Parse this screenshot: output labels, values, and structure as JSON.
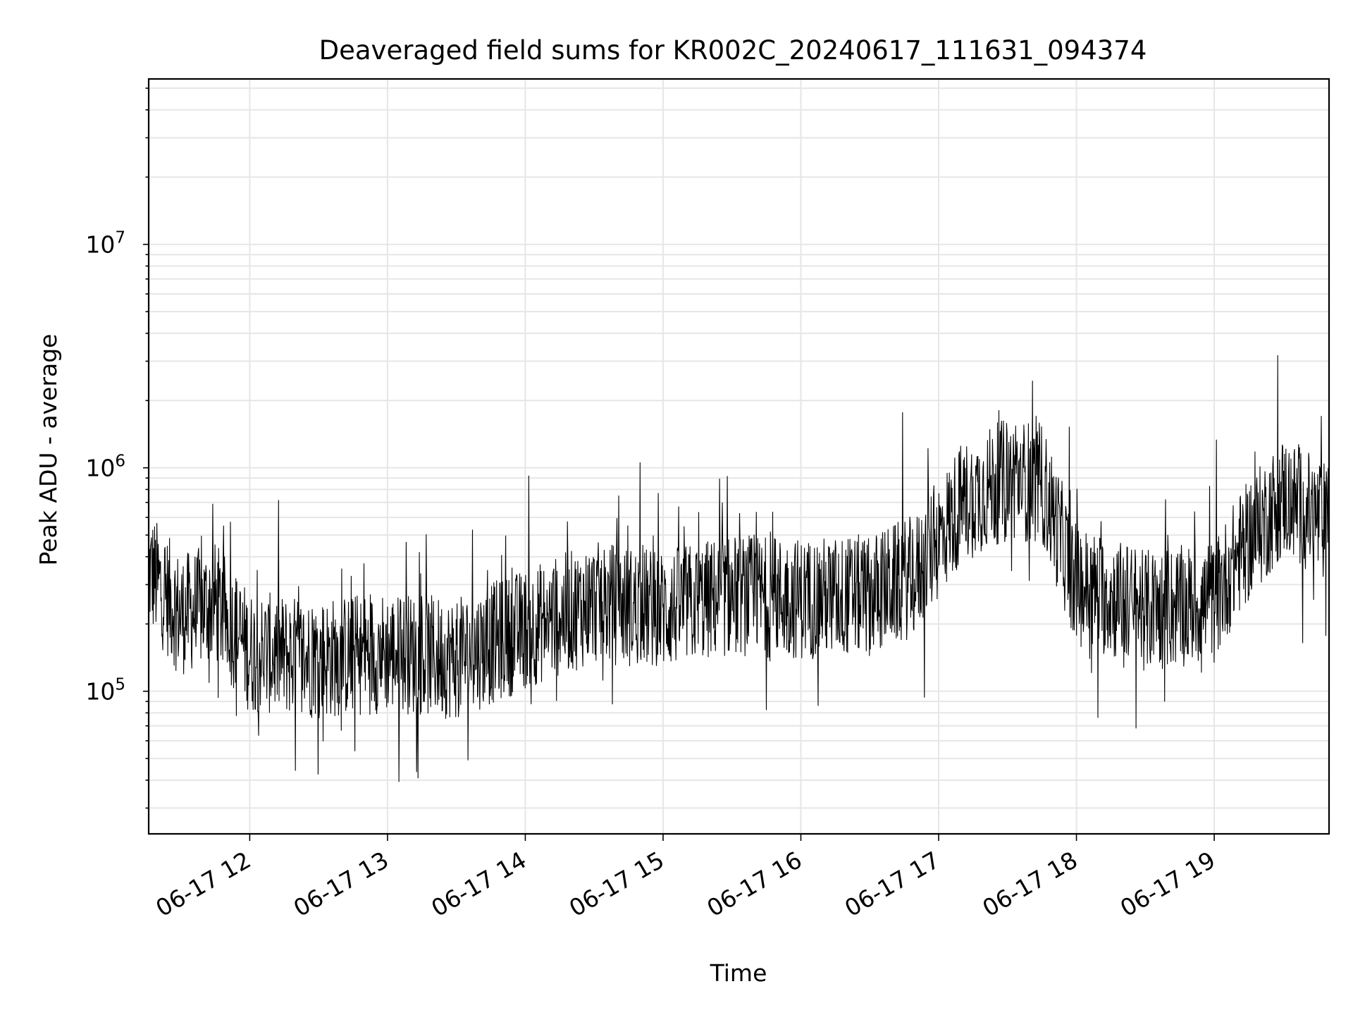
{
  "chart_data": {
    "type": "line",
    "title": "Deaveraged field sums for KR002C_20240617_111631_094374",
    "xlabel": "Time",
    "ylabel": "Peak ADU - average",
    "x_ticks": [
      "06-17 12",
      "06-17 13",
      "06-17 14",
      "06-17 15",
      "06-17 16",
      "06-17 17",
      "06-17 18",
      "06-17 19"
    ],
    "y_ticks": [
      {
        "value": 100000,
        "base": "10",
        "exp": "5"
      },
      {
        "value": 1000000,
        "base": "10",
        "exp": "6"
      },
      {
        "value": 10000000,
        "base": "10",
        "exp": "7"
      }
    ],
    "xlim": [
      "2024-06-17 11:16",
      "2024-06-17 19:50"
    ],
    "ylim": [
      23000,
      55000000
    ],
    "y_scale": "log",
    "grid": true,
    "line_color": "#000000",
    "series": [
      {
        "x": [
          "2024-06-17 11:16",
          "2024-06-17 11:30",
          "2024-06-17 11:45",
          "2024-06-17 12:00",
          "2024-06-17 12:30",
          "2024-06-17 13:00",
          "2024-06-17 13:30",
          "2024-06-17 14:00",
          "2024-06-17 14:30",
          "2024-06-17 15:00",
          "2024-06-17 15:30",
          "2024-06-17 16:00",
          "2024-06-17 16:30",
          "2024-06-17 16:50",
          "2024-06-17 17:10",
          "2024-06-17 17:30",
          "2024-06-17 17:45",
          "2024-06-17 18:00",
          "2024-06-17 18:30",
          "2024-06-17 19:00",
          "2024-06-17 19:10",
          "2024-06-17 19:30",
          "2024-06-17 19:50"
        ],
        "values": [
          350000,
          220000,
          250000,
          150000,
          140000,
          150000,
          140000,
          190000,
          250000,
          230000,
          270000,
          260000,
          270000,
          330000,
          700000,
          900000,
          850000,
          300000,
          230000,
          250000,
          400000,
          750000,
          550000
        ]
      }
    ]
  }
}
